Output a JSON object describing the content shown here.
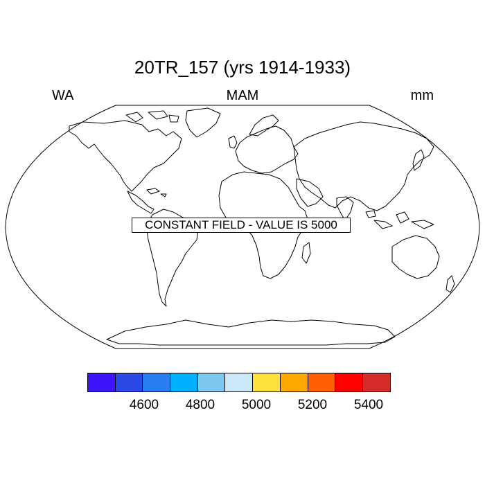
{
  "title": "20TR_157 (yrs 1914-1933)",
  "left_label": "WA",
  "center_label": "MAM",
  "right_label": "mm",
  "map_message": "CONSTANT FIELD - VALUE IS 5000",
  "colorbar": {
    "colors": [
      "#3c14f7",
      "#2b49e6",
      "#2a7ef1",
      "#00b0ff",
      "#7dc8ee",
      "#cce9fa",
      "#ffe23c",
      "#ffa800",
      "#ff5f00",
      "#ff0000",
      "#d42a2a"
    ],
    "tick_labels": [
      "4600",
      "4800",
      "5000",
      "5200",
      "5400"
    ]
  }
}
